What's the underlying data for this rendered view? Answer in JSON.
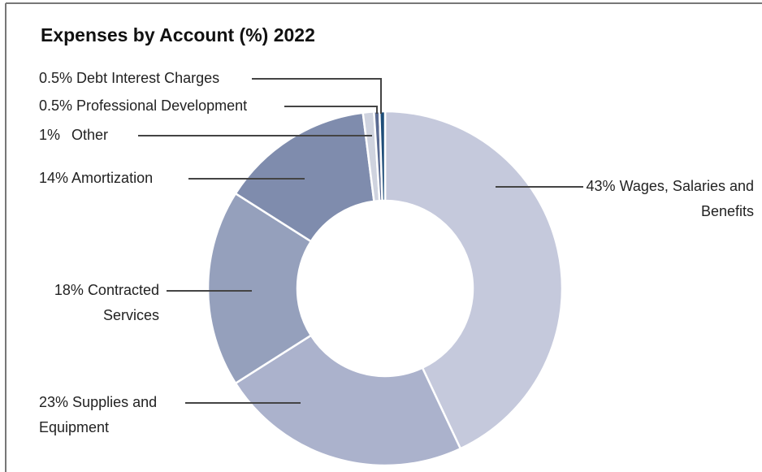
{
  "chart_data": {
    "type": "donut",
    "title": "Expenses by Account (%) 2022",
    "categories": [
      "Wages, Salaries and Benefits",
      "Supplies and Equipment",
      "Contracted Services",
      "Amortization",
      "Other",
      "Professional Development",
      "Debt Interest Charges"
    ],
    "values": [
      43,
      23,
      18,
      14,
      1,
      0.5,
      0.5
    ],
    "value_labels": [
      "43%",
      "23%",
      "18%",
      "14%",
      "1%",
      "0.5%",
      "0.5%"
    ],
    "colors": [
      "#c5c9dc",
      "#abb2cc",
      "#95a0bc",
      "#7f8cad",
      "#cfd3df",
      "#5b6b92",
      "#1f4e79"
    ]
  }
}
